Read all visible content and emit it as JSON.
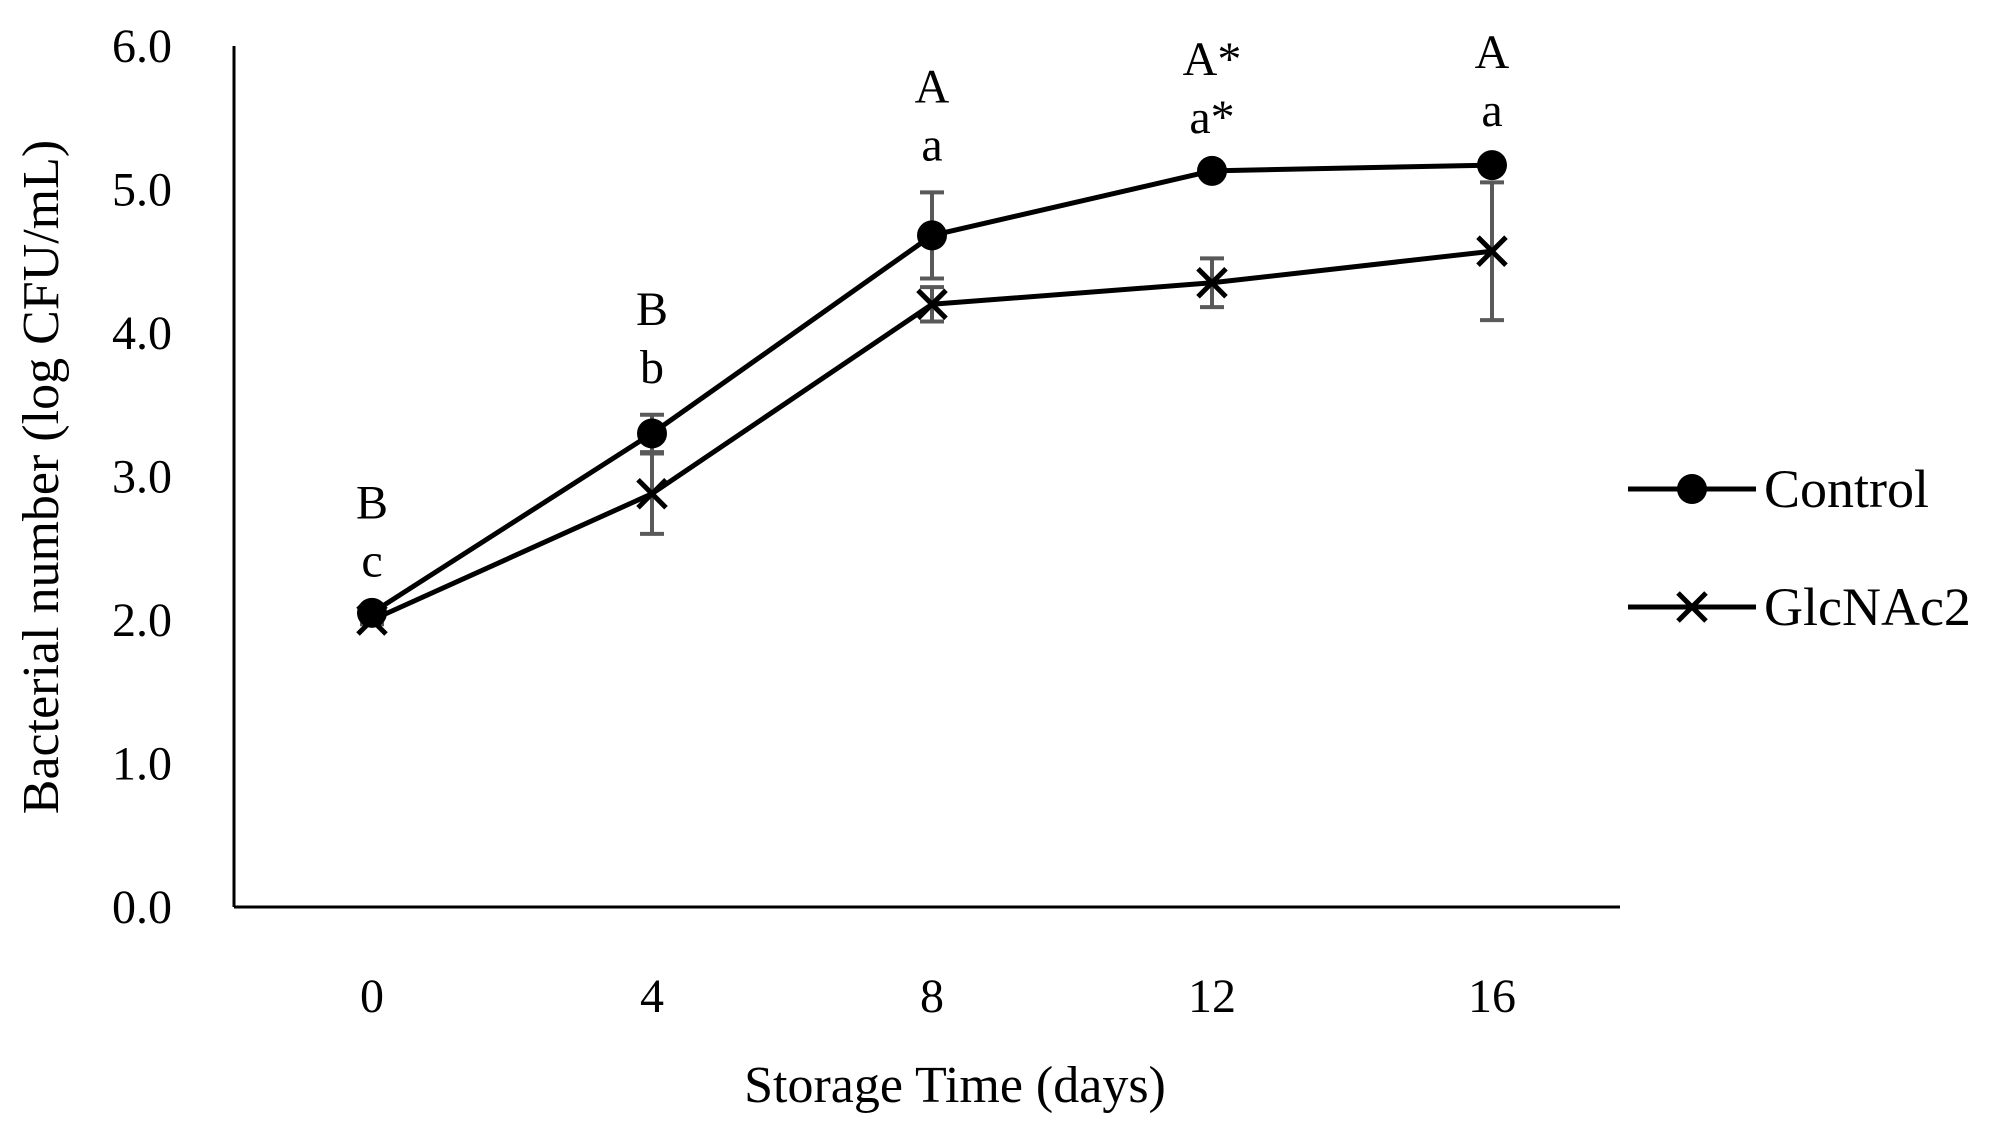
{
  "chart_data": {
    "type": "line",
    "title": "",
    "xlabel": "Storage Time (days)",
    "ylabel": "Bacterial number (log CFU/mL)",
    "x": [
      0,
      4,
      8,
      12,
      16
    ],
    "x_tick_labels": [
      "0",
      "4",
      "8",
      "12",
      "16"
    ],
    "ylim": [
      0,
      6
    ],
    "y_ticks": [
      0,
      1,
      2,
      3,
      4,
      5,
      6
    ],
    "y_tick_labels": [
      "0.0",
      "1.0",
      "2.0",
      "3.0",
      "4.0",
      "5.0",
      "6.0"
    ],
    "grid": false,
    "legend_position": "right",
    "series": [
      {
        "name": "Control",
        "marker": "circle",
        "color": "#000000",
        "values": [
          2.05,
          3.3,
          4.68,
          5.13,
          5.17
        ],
        "errors": [
          0.03,
          0.13,
          0.3,
          0.04,
          0.05
        ]
      },
      {
        "name": "GlcNAc2",
        "marker": "x",
        "color": "#000000",
        "values": [
          2.0,
          2.88,
          4.2,
          4.35,
          4.57
        ],
        "errors": [
          0.03,
          0.28,
          0.12,
          0.17,
          0.48
        ]
      }
    ],
    "annotations": [
      {
        "x": 0,
        "upper": "B",
        "lower": "c"
      },
      {
        "x": 4,
        "upper": "B",
        "lower": "b"
      },
      {
        "x": 8,
        "upper": "A",
        "lower": "a"
      },
      {
        "x": 12,
        "upper": "A*",
        "lower": "a*"
      },
      {
        "x": 16,
        "upper": "A",
        "lower": "a"
      }
    ],
    "error_bar_color": "#595959"
  }
}
